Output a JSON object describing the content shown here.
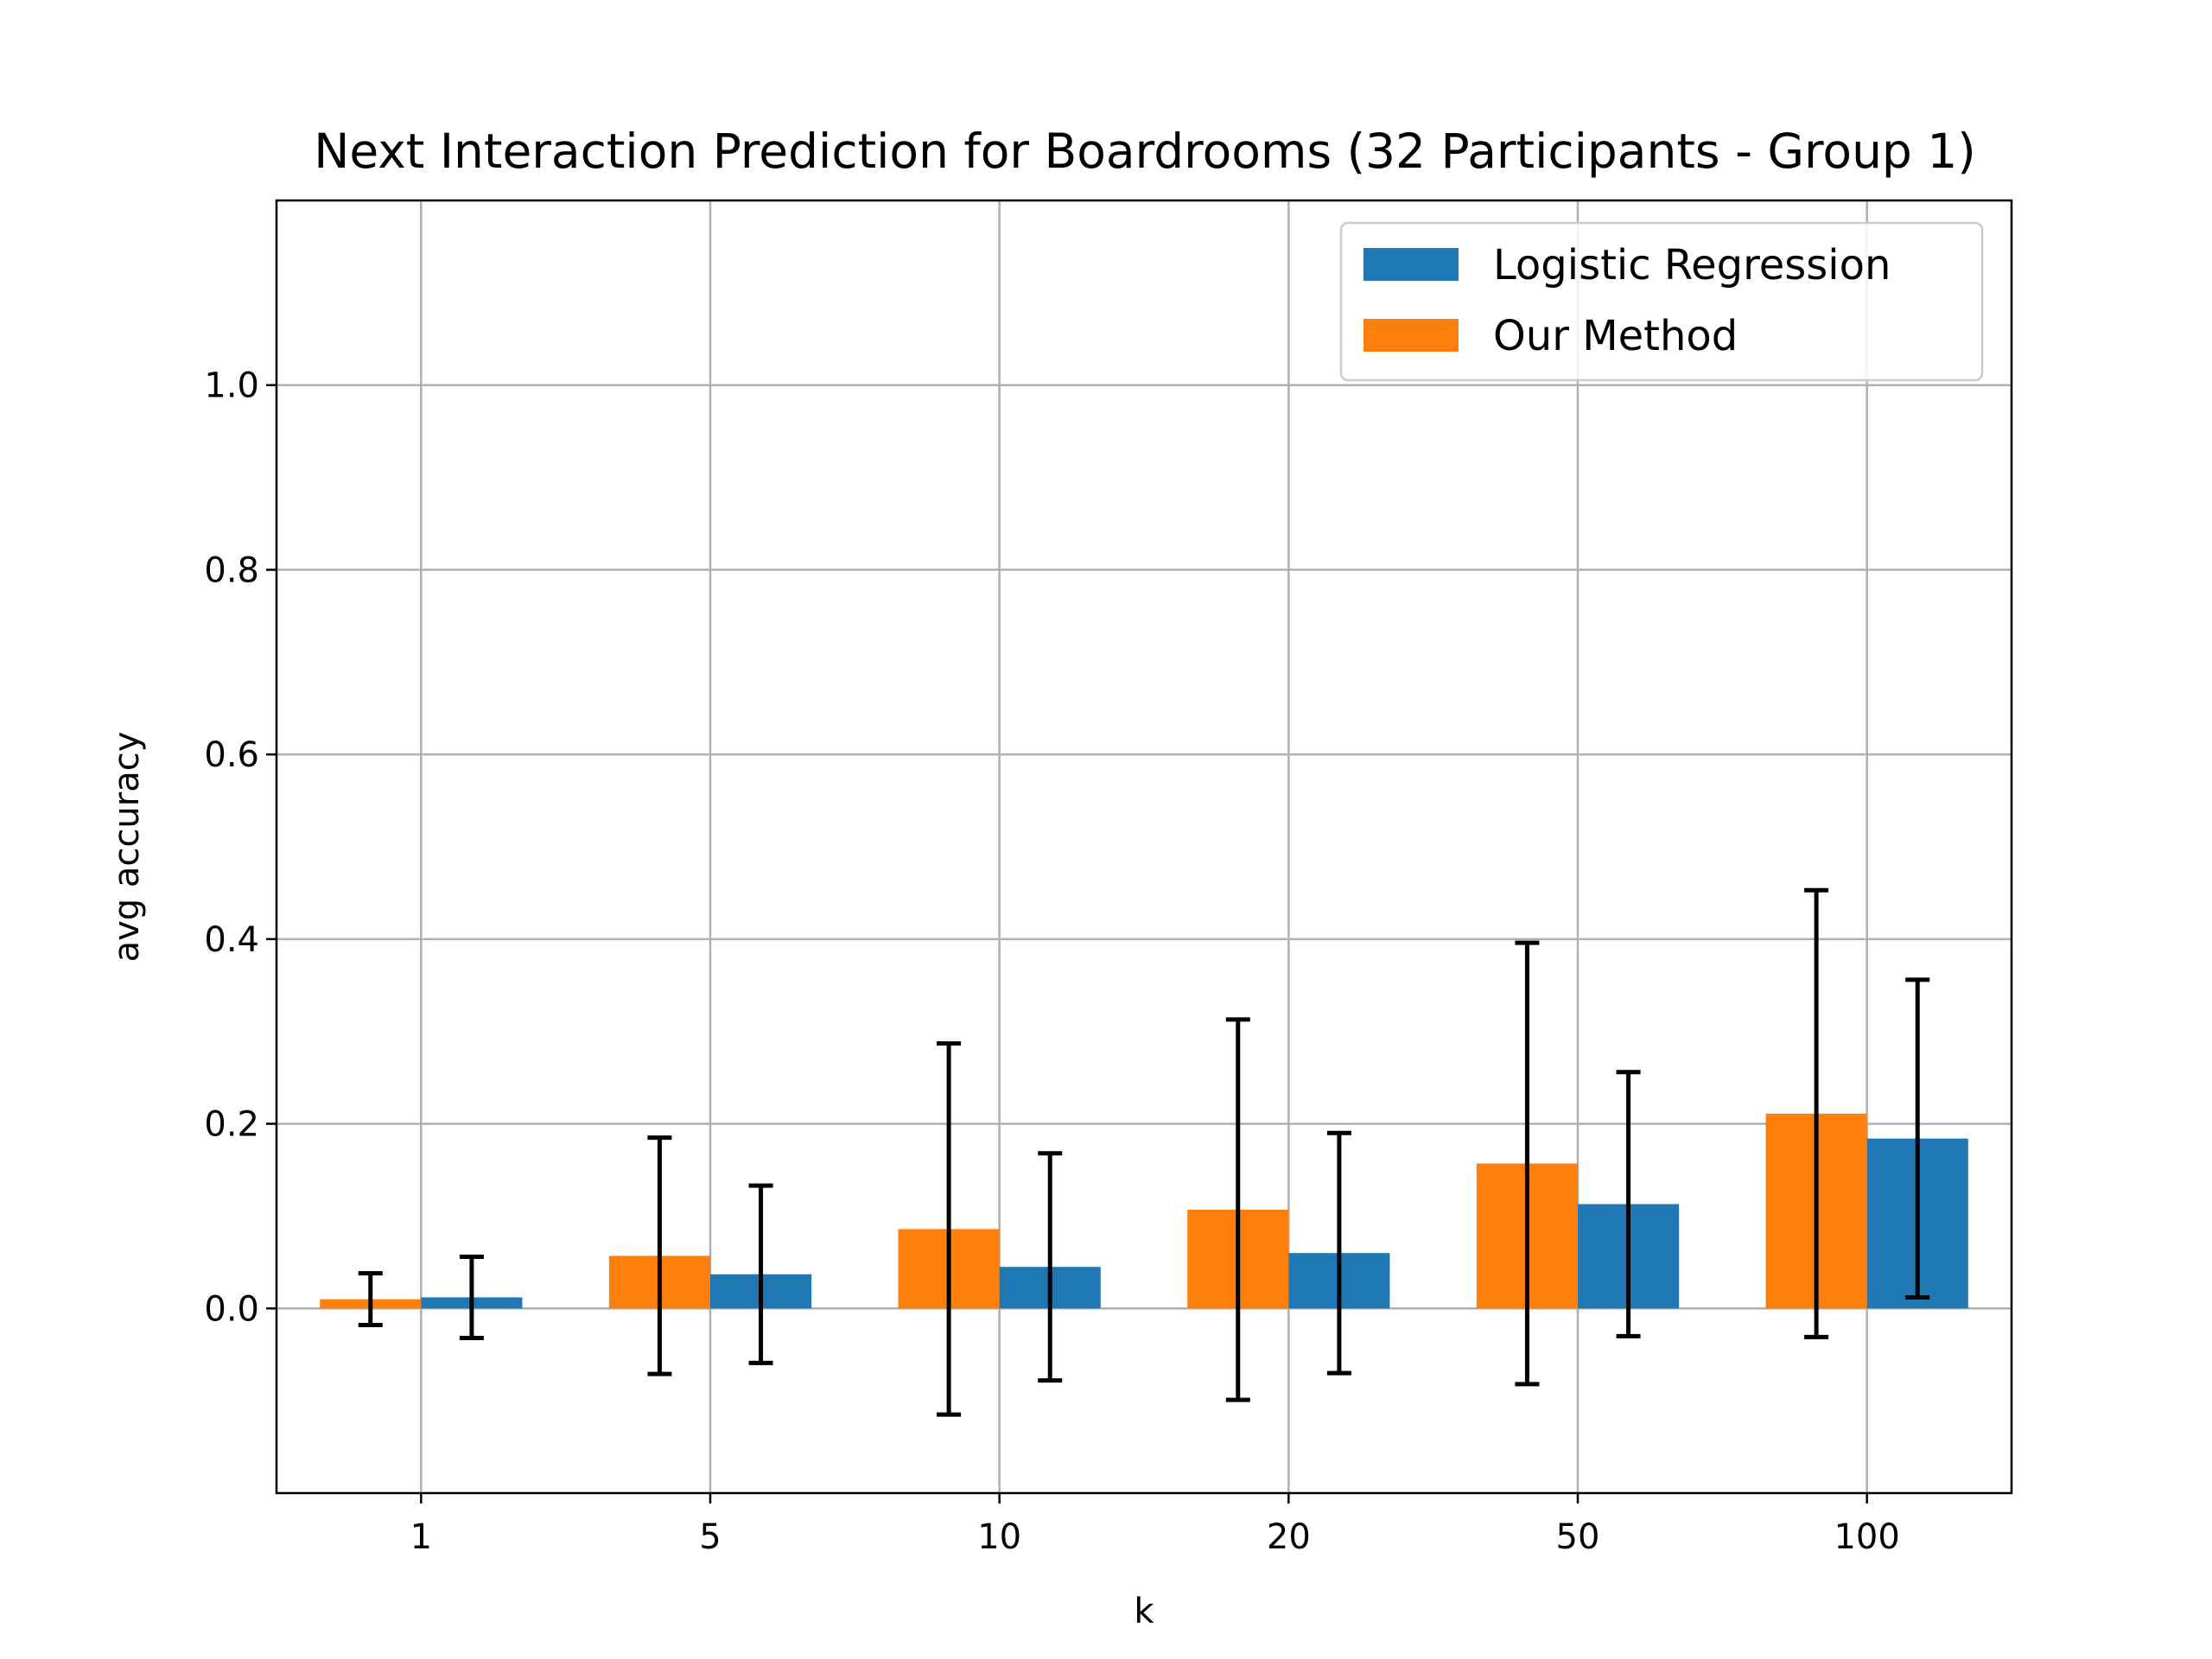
{
  "chart_data": {
    "type": "bar",
    "title": "Next Interaction Prediction for Boardrooms (32 Participants - Group 1)",
    "xlabel": "k",
    "ylabel": "avg accuracy",
    "categories": [
      "1",
      "5",
      "10",
      "20",
      "50",
      "100"
    ],
    "ylim": [
      -0.2,
      1.2
    ],
    "yticks": [
      0.0,
      0.2,
      0.4,
      0.6,
      0.8,
      1.0
    ],
    "ytick_labels": [
      "0.0",
      "0.2",
      "0.4",
      "0.6",
      "0.8",
      "1.0"
    ],
    "grid": true,
    "legend_position": "top-right",
    "series": [
      {
        "name": "Logistic Regression",
        "color": "#1f77b4",
        "values": [
          0.012,
          0.037,
          0.045,
          0.06,
          0.113,
          0.184
        ],
        "errors": [
          0.044,
          0.096,
          0.123,
          0.13,
          0.143,
          0.172
        ]
      },
      {
        "name": "Our Method",
        "color": "#ff7f0e",
        "values": [
          0.01,
          0.057,
          0.086,
          0.107,
          0.157,
          0.211
        ],
        "errors": [
          0.028,
          0.128,
          0.201,
          0.206,
          0.239,
          0.242
        ]
      }
    ]
  }
}
